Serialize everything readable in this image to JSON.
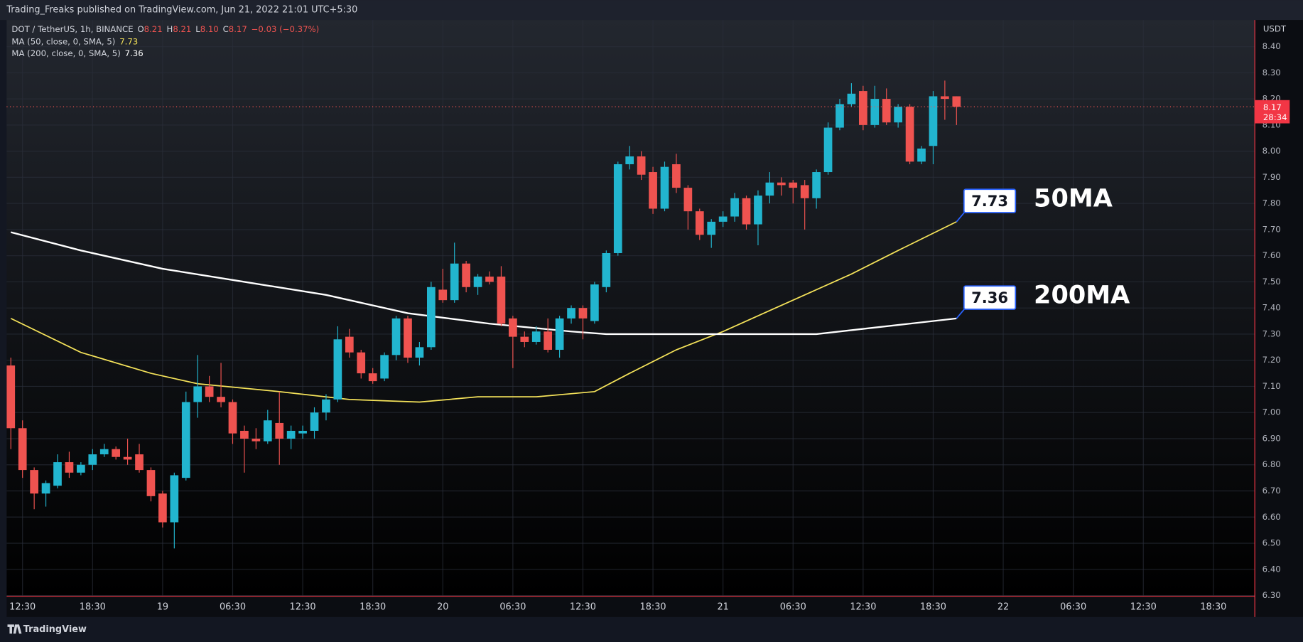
{
  "chart_data": {
    "type": "candlestick",
    "source": "Trading_Freaks published on TradingView.com, Jun 21, 2022 21:01 UTC+5:30",
    "symbol": "DOT / TetherUS, 1h, BINANCE",
    "ohlc": [
      {
        "key": "O",
        "value": "8.21"
      },
      {
        "key": "H",
        "value": "8.21"
      },
      {
        "key": "L",
        "value": "8.10"
      },
      {
        "key": "C",
        "value": "8.17"
      }
    ],
    "change": "−0.03 (−0.37%)",
    "currency": "USDT",
    "countdown": "28:34",
    "brand": "TradingView",
    "up_color": "#22b5cf",
    "down_color": "#ef5350",
    "grid": true,
    "x": [
      0,
      1,
      2,
      3,
      4,
      5,
      6,
      7,
      8,
      9,
      10,
      11,
      12,
      13,
      14,
      15,
      16,
      17,
      18,
      19,
      20,
      21,
      22,
      23,
      24,
      25,
      26,
      27,
      28,
      29,
      30,
      31,
      32,
      33,
      34,
      35,
      36,
      37,
      38,
      39,
      40,
      41,
      42,
      43,
      44,
      45,
      46,
      47,
      48,
      49,
      50,
      51,
      52,
      53,
      54,
      55,
      56,
      57,
      58,
      59,
      60,
      61,
      62,
      63,
      64,
      65,
      66,
      67,
      68,
      69,
      70,
      71,
      72,
      73,
      74,
      75,
      76,
      77,
      78,
      79,
      80,
      81
    ],
    "open": [
      7.18,
      6.94,
      6.78,
      6.69,
      6.72,
      6.81,
      6.77,
      6.8,
      6.84,
      6.86,
      6.83,
      6.84,
      6.78,
      6.69,
      6.58,
      6.75,
      7.04,
      7.1,
      7.06,
      7.04,
      6.93,
      6.9,
      6.89,
      6.96,
      6.9,
      6.92,
      6.93,
      7.0,
      7.05,
      7.29,
      7.23,
      7.15,
      7.13,
      7.22,
      7.36,
      7.21,
      7.25,
      7.47,
      7.43,
      7.57,
      7.48,
      7.52,
      7.52,
      7.36,
      7.29,
      7.27,
      7.31,
      7.24,
      7.36,
      7.4,
      7.35,
      7.48,
      7.61,
      7.95,
      7.98,
      7.92,
      7.78,
      7.95,
      7.86,
      7.77,
      7.68,
      7.73,
      7.75,
      7.82,
      7.72,
      7.83,
      7.88,
      7.88,
      7.87,
      7.82,
      7.92,
      8.09,
      8.18,
      8.23,
      8.1,
      8.2,
      8.11,
      8.17,
      7.96,
      8.02,
      8.21,
      8.21
    ],
    "high": [
      7.21,
      6.97,
      6.79,
      6.74,
      6.84,
      6.85,
      6.81,
      6.86,
      6.88,
      6.87,
      6.9,
      6.88,
      6.79,
      6.7,
      6.77,
      7.08,
      7.22,
      7.14,
      7.19,
      7.05,
      6.95,
      6.94,
      7.01,
      7.08,
      6.95,
      6.95,
      7.02,
      7.07,
      7.33,
      7.32,
      7.24,
      7.17,
      7.23,
      7.37,
      7.37,
      7.27,
      7.5,
      7.55,
      7.65,
      7.58,
      7.53,
      7.54,
      7.56,
      7.37,
      7.31,
      7.33,
      7.36,
      7.37,
      7.41,
      7.41,
      7.5,
      7.62,
      7.96,
      8.02,
      8.0,
      7.94,
      7.96,
      7.99,
      7.87,
      7.78,
      7.74,
      7.77,
      7.84,
      7.83,
      7.85,
      7.92,
      7.9,
      7.89,
      7.89,
      7.93,
      8.11,
      8.2,
      8.26,
      8.25,
      8.25,
      8.24,
      8.18,
      8.18,
      8.02,
      8.23,
      8.27,
      8.21
    ],
    "low": [
      6.86,
      6.75,
      6.63,
      6.64,
      6.71,
      6.75,
      6.76,
      6.78,
      6.83,
      6.82,
      6.8,
      6.77,
      6.66,
      6.56,
      6.48,
      6.74,
      6.98,
      7.04,
      7.02,
      6.88,
      6.77,
      6.86,
      6.88,
      6.8,
      6.86,
      6.9,
      6.9,
      6.97,
      7.04,
      7.21,
      7.13,
      7.11,
      7.12,
      7.2,
      7.19,
      7.18,
      7.24,
      7.42,
      7.42,
      7.46,
      7.45,
      7.49,
      7.33,
      7.17,
      7.25,
      7.26,
      7.23,
      7.21,
      7.34,
      7.28,
      7.34,
      7.46,
      7.6,
      7.93,
      7.89,
      7.76,
      7.77,
      7.84,
      7.7,
      7.66,
      7.63,
      7.71,
      7.73,
      7.7,
      7.64,
      7.8,
      7.83,
      7.8,
      7.7,
      7.78,
      7.91,
      8.08,
      8.17,
      8.08,
      8.09,
      8.1,
      8.09,
      7.95,
      7.95,
      7.95,
      8.12,
      8.1
    ],
    "close": [
      6.94,
      6.78,
      6.69,
      6.73,
      6.81,
      6.77,
      6.8,
      6.84,
      6.86,
      6.83,
      6.82,
      6.78,
      6.68,
      6.58,
      6.76,
      7.04,
      7.1,
      7.06,
      7.04,
      6.92,
      6.9,
      6.89,
      6.97,
      6.9,
      6.93,
      6.93,
      7.0,
      7.05,
      7.28,
      7.23,
      7.15,
      7.12,
      7.22,
      7.36,
      7.21,
      7.25,
      7.48,
      7.43,
      7.57,
      7.48,
      7.52,
      7.5,
      7.34,
      7.29,
      7.27,
      7.31,
      7.24,
      7.36,
      7.4,
      7.36,
      7.49,
      7.61,
      7.95,
      7.98,
      7.91,
      7.78,
      7.94,
      7.86,
      7.77,
      7.68,
      7.73,
      7.75,
      7.82,
      7.72,
      7.83,
      7.88,
      7.87,
      7.86,
      7.82,
      7.92,
      8.09,
      8.18,
      8.22,
      8.1,
      8.2,
      8.11,
      8.17,
      7.96,
      8.01,
      8.21,
      8.2,
      8.17
    ],
    "ma_series": [
      {
        "name": "MA (50, close, 0, SMA, 5)",
        "color": "#f5e35a",
        "callout": "50MA",
        "x": [
          0,
          6,
          12,
          16,
          23,
          29,
          35,
          40,
          45,
          50,
          53,
          57,
          61,
          65,
          68,
          72,
          76,
          81
        ],
        "values": [
          7.36,
          7.23,
          7.15,
          7.11,
          7.08,
          7.05,
          7.04,
          7.06,
          7.06,
          7.08,
          7.15,
          7.24,
          7.31,
          7.39,
          7.45,
          7.53,
          7.62,
          7.73
        ]
      },
      {
        "name": "MA (200, close, 0, SMA, 5)",
        "color": "#ffffff",
        "callout": "200MA",
        "x": [
          0,
          6,
          13,
          20,
          27,
          34,
          41,
          48,
          51,
          55,
          60,
          65,
          69,
          73,
          77,
          81
        ],
        "values": [
          7.69,
          7.62,
          7.55,
          7.5,
          7.45,
          7.38,
          7.34,
          7.31,
          7.3,
          7.3,
          7.3,
          7.3,
          7.3,
          7.32,
          7.34,
          7.36
        ]
      }
    ],
    "xlim": [
      -0.36,
      106.55
    ],
    "xticks": [
      {
        "value": 1,
        "label": "12:30"
      },
      {
        "value": 7,
        "label": "18:30"
      },
      {
        "value": 13,
        "label": "19"
      },
      {
        "value": 19,
        "label": "06:30"
      },
      {
        "value": 25,
        "label": "12:30"
      },
      {
        "value": 31,
        "label": "18:30"
      },
      {
        "value": 37,
        "label": "20"
      },
      {
        "value": 43,
        "label": "06:30"
      },
      {
        "value": 49,
        "label": "12:30"
      },
      {
        "value": 55,
        "label": "18:30"
      },
      {
        "value": 61,
        "label": "21"
      },
      {
        "value": 67,
        "label": "06:30"
      },
      {
        "value": 73,
        "label": "12:30"
      },
      {
        "value": 79,
        "label": "18:30"
      },
      {
        "value": 85,
        "label": "22"
      },
      {
        "value": 91,
        "label": "06:30"
      },
      {
        "value": 97,
        "label": "12:30"
      },
      {
        "value": 103,
        "label": "18:30"
      }
    ],
    "ylim": [
      6.297,
      8.502
    ],
    "yticks": [
      {
        "value": 6.3,
        "label": "6.30"
      },
      {
        "value": 6.4,
        "label": "6.40"
      },
      {
        "value": 6.5,
        "label": "6.50"
      },
      {
        "value": 6.6,
        "label": "6.60"
      },
      {
        "value": 6.7,
        "label": "6.70"
      },
      {
        "value": 6.8,
        "label": "6.80"
      },
      {
        "value": 6.9,
        "label": "6.90"
      },
      {
        "value": 7.0,
        "label": "7.00"
      },
      {
        "value": 7.1,
        "label": "7.10"
      },
      {
        "value": 7.2,
        "label": "7.20"
      },
      {
        "value": 7.3,
        "label": "7.30"
      },
      {
        "value": 7.4,
        "label": "7.40"
      },
      {
        "value": 7.5,
        "label": "7.50"
      },
      {
        "value": 7.6,
        "label": "7.60"
      },
      {
        "value": 7.7,
        "label": "7.70"
      },
      {
        "value": 7.8,
        "label": "7.80"
      },
      {
        "value": 7.9,
        "label": "7.90"
      },
      {
        "value": 8.0,
        "label": "8.00"
      },
      {
        "value": 8.1,
        "label": "8.10"
      },
      {
        "value": 8.2,
        "label": "8.20"
      },
      {
        "value": 8.3,
        "label": "8.30"
      },
      {
        "value": 8.4,
        "label": "8.40"
      }
    ]
  }
}
